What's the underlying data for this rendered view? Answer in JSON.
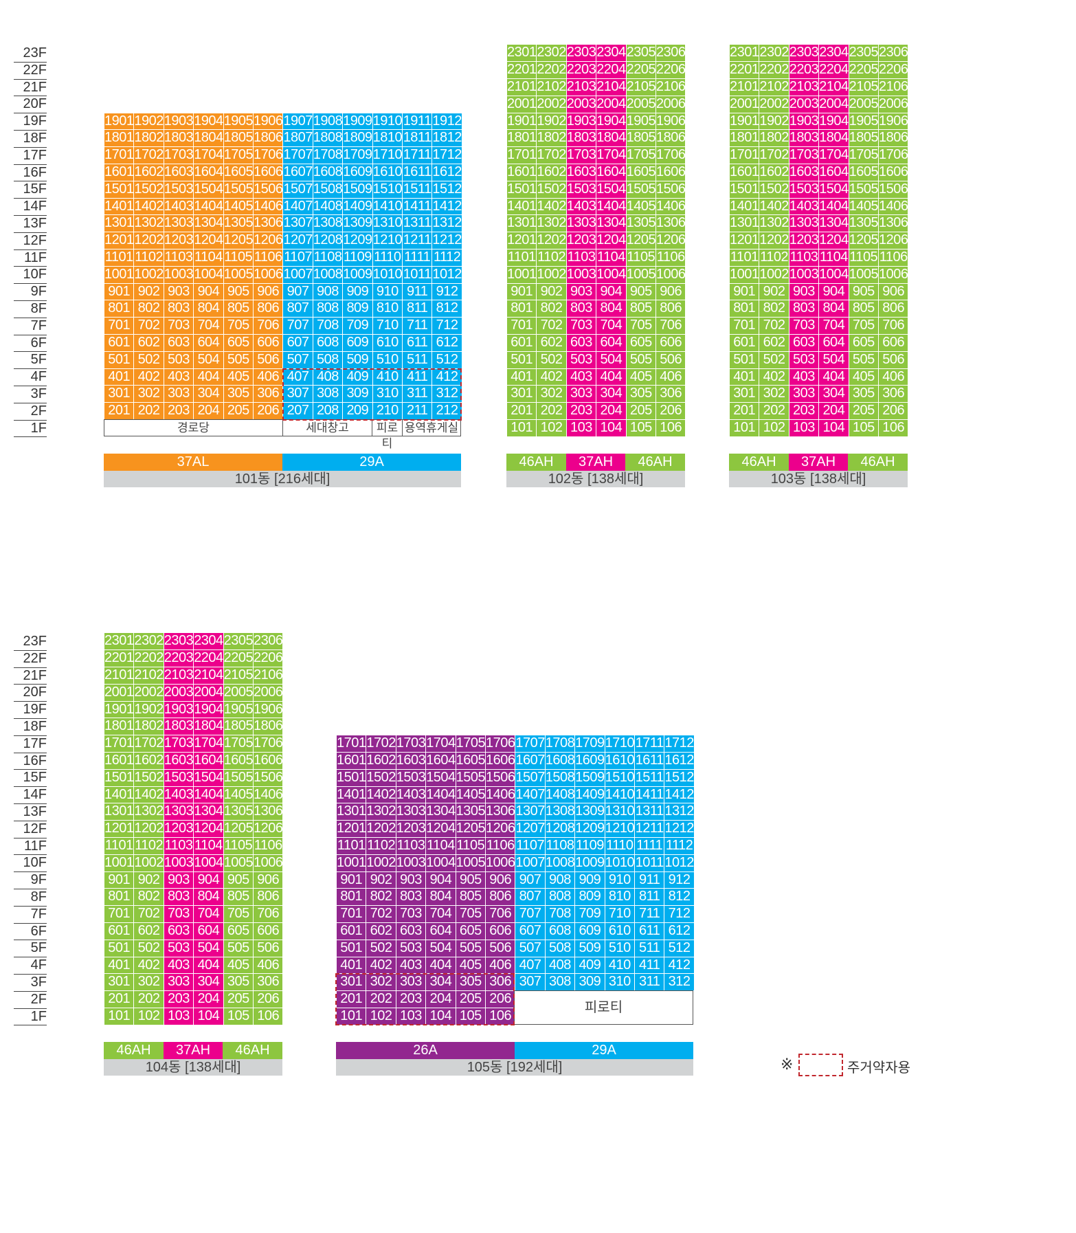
{
  "floors_top": [
    "23F",
    "22F",
    "21F",
    "20F",
    "19F",
    "18F",
    "17F",
    "16F",
    "15F",
    "14F",
    "13F",
    "12F",
    "11F",
    "10F",
    "9F",
    "8F",
    "7F",
    "6F",
    "5F",
    "4F",
    "3F",
    "2F",
    "1F"
  ],
  "floors_bottom": [
    "23F",
    "22F",
    "21F",
    "20F",
    "19F",
    "18F",
    "17F",
    "16F",
    "15F",
    "14F",
    "13F",
    "12F",
    "11F",
    "10F",
    "9F",
    "8F",
    "7F",
    "6F",
    "5F",
    "4F",
    "3F",
    "2F",
    "1F"
  ],
  "colors": {
    "37AL": "#f7931e",
    "29A": "#00aeef",
    "46AH": "#8dc63f",
    "37AH": "#ec008c",
    "26A": "#92278f",
    "dashed_outline": "#c1272d"
  },
  "buildings": {
    "b101": {
      "name": "101동 [216세대]",
      "types": [
        {
          "label": "37AL",
          "color": "#f7931e"
        },
        {
          "label": "29A",
          "color": "#00aeef"
        }
      ],
      "ground_labels": {
        "senior_center": "경로당",
        "storage": "세대창고",
        "piloti": "피로티",
        "staff_lounge": "용역휴게실"
      }
    },
    "b102": {
      "name": "102동 [138세대]",
      "types": [
        {
          "label": "46AH",
          "color": "#8dc63f"
        },
        {
          "label": "37AH",
          "color": "#ec008c"
        },
        {
          "label": "46AH",
          "color": "#8dc63f"
        }
      ]
    },
    "b103": {
      "name": "103동 [138세대]",
      "types": [
        {
          "label": "46AH",
          "color": "#8dc63f"
        },
        {
          "label": "37AH",
          "color": "#ec008c"
        },
        {
          "label": "46AH",
          "color": "#8dc63f"
        }
      ]
    },
    "b104": {
      "name": "104동 [138세대]",
      "types": [
        {
          "label": "46AH",
          "color": "#8dc63f"
        },
        {
          "label": "37AH",
          "color": "#ec008c"
        },
        {
          "label": "46AH",
          "color": "#8dc63f"
        }
      ]
    },
    "b105": {
      "name": "105동 [192세대]",
      "types": [
        {
          "label": "26A",
          "color": "#92278f"
        },
        {
          "label": "29A",
          "color": "#00aeef"
        }
      ],
      "ground_labels": {
        "piloti": "피로티"
      }
    }
  },
  "legend": {
    "mark": "※",
    "label": "주거약자용"
  }
}
